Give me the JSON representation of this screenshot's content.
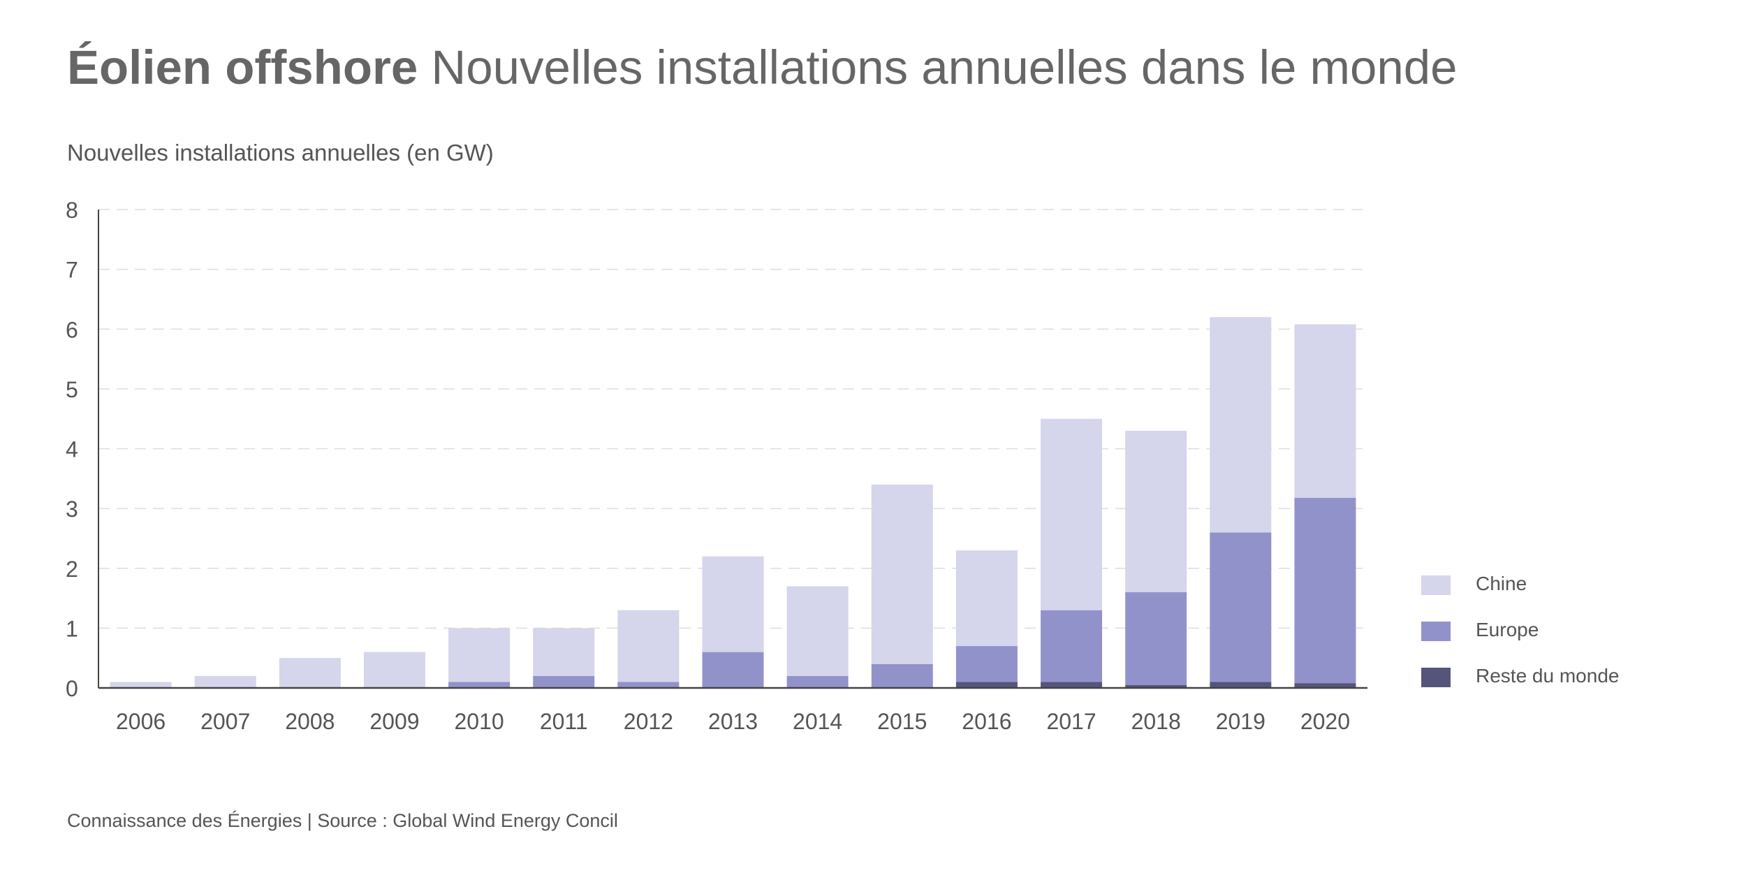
{
  "header": {
    "title_bold": "Éolien offshore",
    "title_rest": "Nouvelles installations annuelles dans le monde",
    "axis_title": "Nouvelles installations annuelles (en GW)"
  },
  "footer": {
    "source": "Connaissance des Énergies | Source : Global Wind Energy Concil"
  },
  "legend": {
    "position": "right",
    "items": [
      {
        "label": "Chine",
        "color": "#d5d5eb"
      },
      {
        "label": "Europe",
        "color": "#9292cb"
      },
      {
        "label": "Reste du monde",
        "color": "#55557c"
      }
    ]
  },
  "chart_data": {
    "type": "bar",
    "stacked": true,
    "title": "Éolien offshore Nouvelles installations annuelles dans le monde",
    "ylabel": "Nouvelles installations annuelles (en GW)",
    "xlabel": "",
    "ylim": [
      0,
      8
    ],
    "yticks": [
      0,
      1,
      2,
      3,
      4,
      5,
      6,
      7,
      8
    ],
    "grid": true,
    "categories": [
      "2006",
      "2007",
      "2008",
      "2009",
      "2010",
      "2011",
      "2012",
      "2013",
      "2014",
      "2015",
      "2016",
      "2017",
      "2018",
      "2019",
      "2020"
    ],
    "series": [
      {
        "name": "Reste du monde",
        "color": "#55557c",
        "values": [
          0,
          0,
          0,
          0,
          0,
          0,
          0,
          0,
          0,
          0,
          0.1,
          0.1,
          0.05,
          0.1,
          0.08
        ]
      },
      {
        "name": "Europe",
        "color": "#9292cb",
        "values": [
          0,
          0,
          0,
          0,
          0.1,
          0.2,
          0.1,
          0.6,
          0.2,
          0.4,
          0.6,
          1.2,
          1.55,
          2.5,
          3.1
        ]
      },
      {
        "name": "Chine",
        "color": "#d5d5eb",
        "values": [
          0.1,
          0.2,
          0.5,
          0.6,
          0.9,
          0.8,
          1.2,
          1.6,
          1.5,
          3.0,
          1.6,
          3.2,
          2.7,
          3.6,
          2.9
        ]
      }
    ]
  }
}
